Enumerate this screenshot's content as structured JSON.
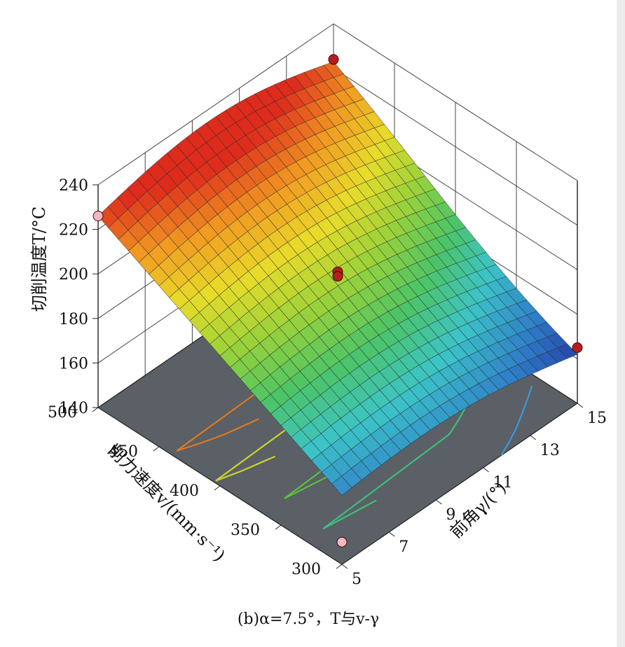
{
  "chart_data": {
    "type": "surface3d",
    "caption": "(b)α=7.5°，T与v-γ",
    "zlabel": "切削温度T/°C",
    "xlabel": "前角γ/(°)",
    "ylabel": "削力速度v/(mm·s⁻¹)",
    "z_ticks": [
      "240",
      "220",
      "200",
      "180",
      "160",
      "140"
    ],
    "x_ticks": [
      "5",
      "7",
      "9",
      "11",
      "13",
      "15"
    ],
    "y_ticks": [
      "300",
      "350",
      "400",
      "450",
      "500"
    ],
    "zlim": [
      140,
      240
    ],
    "xlim": [
      5,
      15
    ],
    "ylim": [
      300,
      500
    ],
    "surface_corners": [
      {
        "gamma": 5,
        "v": 500,
        "T": 226
      },
      {
        "gamma": 15,
        "v": 500,
        "T": 223
      },
      {
        "gamma": 5,
        "v": 300,
        "T": 171
      },
      {
        "gamma": 15,
        "v": 300,
        "T": 162
      }
    ],
    "design_points": [
      {
        "gamma": 5,
        "v": 500,
        "T": 226,
        "color": "#f4b6c2"
      },
      {
        "gamma": 15,
        "v": 500,
        "T": 224,
        "color": "#b81c1c"
      },
      {
        "gamma": 10,
        "v": 400,
        "T": 200,
        "color": "#b81c1c"
      },
      {
        "gamma": 10,
        "v": 400,
        "T": 198,
        "color": "#b81c1c"
      },
      {
        "gamma": 15,
        "v": 300,
        "T": 165,
        "color": "#b81c1c"
      },
      {
        "gamma": 5,
        "v": 300,
        "T": 150,
        "color": "#f4b6c2"
      }
    ],
    "contours": [
      {
        "T": 210,
        "color": "#e07a1f"
      },
      {
        "T": 200,
        "color": "#c9d42a"
      },
      {
        "T": 190,
        "color": "#5cc23a"
      },
      {
        "T": 180,
        "color": "#3cc07a"
      },
      {
        "T": 170,
        "color": "#3a9ad9"
      }
    ],
    "floor_color": "#5b5f66",
    "colormap": [
      "#2233a0",
      "#2f7fc8",
      "#3cc4c8",
      "#4cc466",
      "#9ad23a",
      "#e8dc2a",
      "#f19a22",
      "#de2b1c"
    ]
  }
}
